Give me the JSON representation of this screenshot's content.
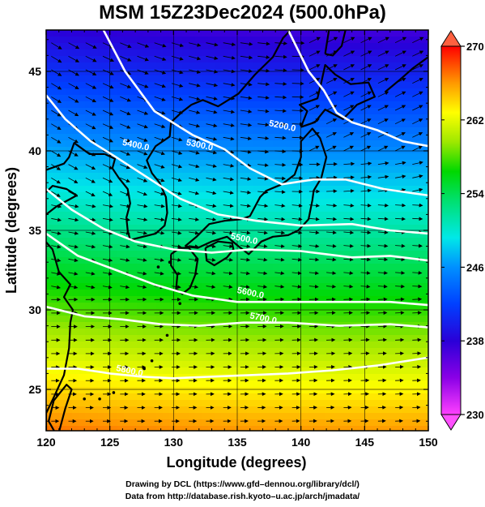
{
  "title": "MSM 15Z23Dec2024 (500.0hPa)",
  "x_axis": {
    "label": "Longitude (degrees)",
    "range": [
      120,
      150
    ],
    "ticks": [
      "120",
      "125",
      "130",
      "135",
      "140",
      "145",
      "150"
    ]
  },
  "y_axis": {
    "label": "Latitude  (degrees)",
    "range": [
      22.4,
      47.6
    ],
    "ticks": [
      "25",
      "30",
      "35",
      "40",
      "45"
    ]
  },
  "colorbar": {
    "range": [
      230,
      270
    ],
    "ticks": [
      "230",
      "238",
      "246",
      "254",
      "262",
      "270"
    ]
  },
  "contours": [
    {
      "label": "5200.0"
    },
    {
      "label": "5300.0"
    },
    {
      "label": "5400.0"
    },
    {
      "label": "5500.0"
    },
    {
      "label": "5600.0"
    },
    {
      "label": "5700.0"
    },
    {
      "label": "5800.0"
    }
  ],
  "credits": [
    "Drawing by DCL (https://www.gfd–dennou.org/library/dcl/)",
    "Data from http://database.rish.kyoto–u.ac.jp/arch/jmadata/"
  ],
  "colors": {
    "wind_vectors": "#000000",
    "contour_lines": "#ffffff",
    "coastline": "#000000"
  }
}
